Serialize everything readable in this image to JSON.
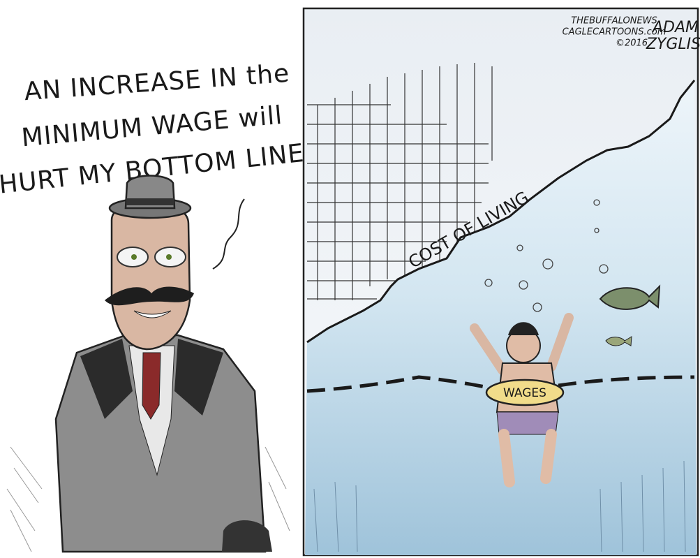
{
  "left_panel": {
    "speech_lines": [
      "AN INCREASE IN the",
      "MINIMUM WAGE will",
      "HURT MY BOTTOM LINE!"
    ]
  },
  "right_panel": {
    "credit_lines": [
      "THEBUFFALONEWS",
      "CAGLECARTOONS.com",
      "©2016"
    ],
    "signature_lines": [
      "ADAM",
      "ZYGLIS"
    ],
    "curve_label": "COST OF LIVING",
    "float_label": "WAGES"
  }
}
